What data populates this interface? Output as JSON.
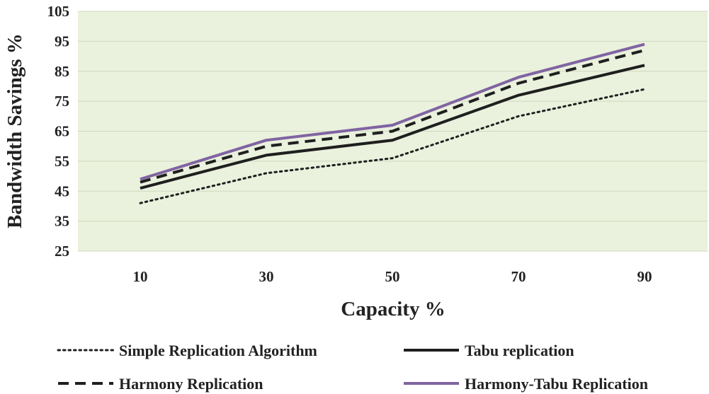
{
  "chart_data": {
    "type": "line",
    "title": "",
    "xlabel": "Capacity %",
    "ylabel": "Bandwidth Savings %",
    "categories": [
      "10",
      "30",
      "50",
      "70",
      "90"
    ],
    "yticks": [
      "25",
      "35",
      "45",
      "55",
      "65",
      "75",
      "85",
      "95",
      "105"
    ],
    "ylim": [
      25,
      105
    ],
    "grid": true,
    "legend_position": "bottom",
    "plot_background": "#eaf1dd",
    "series": [
      {
        "name": "Simple Replication Algorithm",
        "style": "dotted",
        "color": "#1f1f1f",
        "values": [
          41,
          51,
          56,
          70,
          79
        ]
      },
      {
        "name": "Tabu replication",
        "style": "solid",
        "color": "#1f1f1f",
        "values": [
          46,
          57,
          62,
          77,
          87
        ]
      },
      {
        "name": "Harmony Replication",
        "style": "dashed",
        "color": "#1f1f1f",
        "values": [
          48,
          60,
          65,
          81,
          92
        ]
      },
      {
        "name": "Harmony-Tabu Replication",
        "style": "solid",
        "color": "#8064a2",
        "values": [
          49,
          62,
          67,
          83,
          94
        ]
      }
    ]
  }
}
